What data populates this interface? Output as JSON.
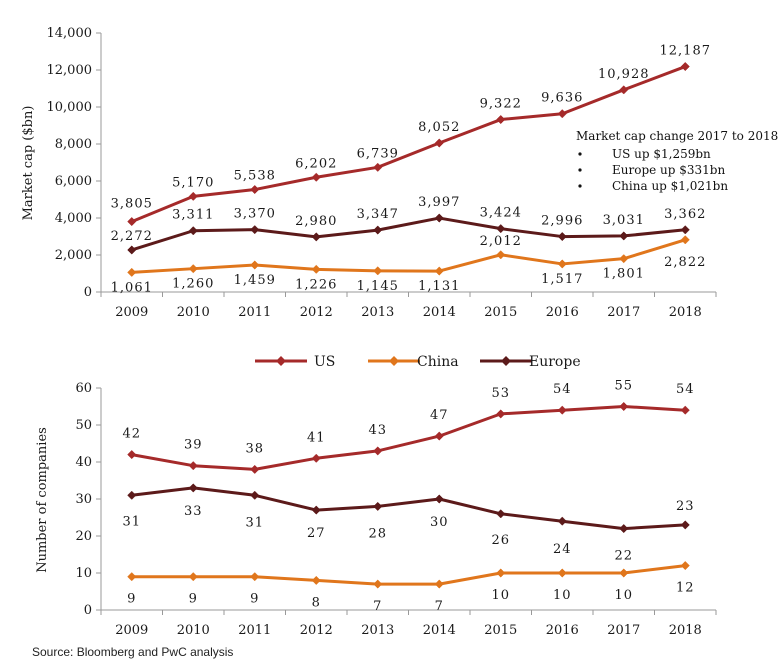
{
  "chart_data": [
    {
      "type": "line",
      "ylabel": "Market cap ($bn)",
      "ylim": [
        0,
        14000
      ],
      "yticks": [
        "0",
        "2,000",
        "4,000",
        "6,000",
        "8,000",
        "10,000",
        "12,000",
        "14,000"
      ],
      "categories": [
        "2009",
        "2010",
        "2011",
        "2012",
        "2013",
        "2014",
        "2015",
        "2016",
        "2017",
        "2018"
      ],
      "series": [
        {
          "name": "US",
          "color": "#a52a2a",
          "values": [
            3805,
            5170,
            5538,
            6202,
            6739,
            8052,
            9322,
            9636,
            10928,
            12187
          ],
          "labels": [
            "3,805",
            "5,170",
            "5,538",
            "6,202",
            "6,739",
            "8,052",
            "9,322",
            "9,636",
            "10,928",
            "12,187"
          ]
        },
        {
          "name": "China",
          "color": "#e0761c",
          "values": [
            1061,
            1260,
            1459,
            1226,
            1145,
            1131,
            2012,
            1517,
            1801,
            2822
          ],
          "labels": [
            "1,061",
            "1,260",
            "1,459",
            "1,226",
            "1,145",
            "1,131",
            "2,012",
            "1,517",
            "1,801",
            "2,822"
          ]
        },
        {
          "name": "Europe",
          "color": "#5c1a1a",
          "values": [
            2272,
            3311,
            3370,
            2980,
            3347,
            3997,
            3424,
            2996,
            3031,
            3362
          ],
          "labels": [
            "2,272",
            "3,311",
            "3,370",
            "2,980",
            "3,347",
            "3,997",
            "3,424",
            "2,996",
            "3,031",
            "3,362"
          ]
        }
      ],
      "annotation": {
        "title": "Market cap change 2017 to 2018",
        "items": [
          "US up $1,259bn",
          "Europe up $331bn",
          "China up $1,021bn"
        ]
      }
    },
    {
      "type": "line",
      "ylabel": "Number of companies",
      "ylim": [
        0,
        60
      ],
      "yticks": [
        "0",
        "10",
        "20",
        "30",
        "40",
        "50",
        "60"
      ],
      "categories": [
        "2009",
        "2010",
        "2011",
        "2012",
        "2013",
        "2014",
        "2015",
        "2016",
        "2017",
        "2018"
      ],
      "series": [
        {
          "name": "US",
          "color": "#a52a2a",
          "values": [
            42,
            39,
            38,
            41,
            43,
            47,
            53,
            54,
            55,
            54
          ],
          "labels": [
            "42",
            "39",
            "38",
            "41",
            "43",
            "47",
            "53",
            "54",
            "55",
            "54"
          ]
        },
        {
          "name": "China",
          "color": "#e0761c",
          "values": [
            9,
            9,
            9,
            8,
            7,
            7,
            10,
            10,
            10,
            12
          ],
          "labels": [
            "9",
            "9",
            "9",
            "8",
            "7",
            "7",
            "10",
            "10",
            "10",
            "12"
          ]
        },
        {
          "name": "Europe",
          "color": "#5c1a1a",
          "values": [
            31,
            33,
            31,
            27,
            28,
            30,
            26,
            24,
            22,
            23
          ],
          "labels": [
            "31",
            "33",
            "31",
            "27",
            "28",
            "30",
            "26",
            "24",
            "22",
            "23"
          ]
        }
      ]
    }
  ],
  "legend": [
    {
      "name": "US",
      "color": "#a52a2a"
    },
    {
      "name": "China",
      "color": "#e0761c"
    },
    {
      "name": "Europe",
      "color": "#5c1a1a"
    }
  ],
  "source": "Source: Bloomberg and PwC analysis"
}
